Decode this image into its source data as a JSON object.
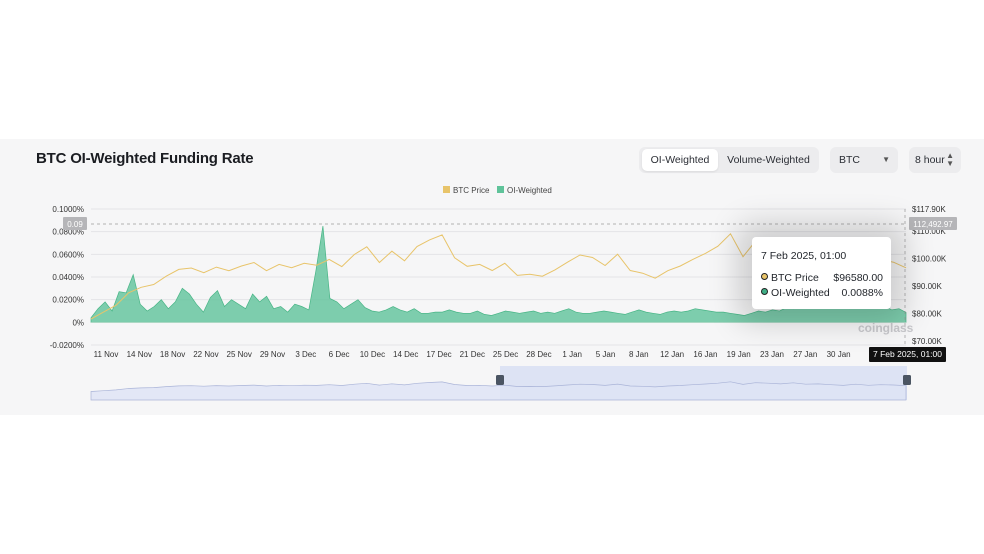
{
  "title": "BTC OI-Weighted Funding Rate",
  "tabs": [
    {
      "label": "OI-Weighted",
      "active": true
    },
    {
      "label": "Volume-Weighted",
      "active": false
    }
  ],
  "coin_select": "BTC",
  "interval_select": "8 hour",
  "watermark": "coinglass",
  "tooltip": {
    "date": "7 Feb 2025, 01:00",
    "rows": [
      {
        "label": "BTC Price",
        "value": "$96580.00",
        "color": "#e8c46a"
      },
      {
        "label": "OI-Weighted",
        "value": "0.0088%",
        "color": "#3fae86"
      }
    ]
  },
  "axis_pointer": {
    "x_label": "7 Feb 2025, 01:00",
    "left_label": "0.09",
    "right_label": "112,492.97"
  },
  "colors": {
    "btc_price": "#e8c46a",
    "oi_weighted": "#5fc39a",
    "zoom_fill": "#c9d3f2"
  },
  "chart_data": {
    "type": "area",
    "legend": [
      "BTC Price",
      "OI-Weighted"
    ],
    "legend_position": "top-center",
    "x_tick_labels": [
      "11 Nov",
      "14 Nov",
      "18 Nov",
      "22 Nov",
      "25 Nov",
      "29 Nov",
      "3 Dec",
      "6 Dec",
      "10 Dec",
      "14 Dec",
      "17 Dec",
      "21 Dec",
      "25 Dec",
      "28 Dec",
      "1 Jan",
      "5 Jan",
      "8 Jan",
      "12 Jan",
      "16 Jan",
      "19 Jan",
      "23 Jan",
      "27 Jan",
      "30 Jan",
      "3"
    ],
    "y_left_ticks": [
      "0.1000%",
      "0.0800%",
      "0.0600%",
      "0.0400%",
      "0.0200%",
      "0%",
      "-0.0200%"
    ],
    "y_right_ticks": [
      "$117.90K",
      "$110.00K",
      "$100.00K",
      "$90.00K",
      "$80.00K",
      "$70.00K"
    ],
    "ylim_left": [
      -0.02,
      0.1
    ],
    "ylim_right": [
      70000,
      117900
    ],
    "grid": true,
    "series": [
      {
        "name": "BTC Price",
        "axis": "right",
        "values": [
          78000,
          80500,
          83000,
          87500,
          89500,
          90500,
          93500,
          96000,
          96500,
          94800,
          96800,
          95500,
          97200,
          98500,
          95500,
          97800,
          96600,
          98200,
          97500,
          99600,
          97000,
          101400,
          104200,
          98500,
          102600,
          99100,
          104300,
          106700,
          108500,
          100200,
          97100,
          97800,
          95600,
          98200,
          93800,
          94200,
          93500,
          95800,
          98600,
          101200,
          100300,
          97400,
          101500,
          95600,
          94600,
          92800,
          95500,
          97200,
          99600,
          101800,
          104400,
          108900,
          100600,
          106200,
          104400,
          102100,
          105800,
          101200,
          102400,
          99800,
          97500,
          101300,
          97800,
          99600,
          98600,
          96580
        ]
      },
      {
        "name": "OI-Weighted",
        "axis": "left",
        "values": [
          0.004,
          0.012,
          0.018,
          0.01,
          0.027,
          0.026,
          0.042,
          0.016,
          0.01,
          0.014,
          0.02,
          0.012,
          0.018,
          0.03,
          0.025,
          0.016,
          0.009,
          0.022,
          0.028,
          0.014,
          0.02,
          0.016,
          0.012,
          0.025,
          0.018,
          0.023,
          0.012,
          0.014,
          0.009,
          0.016,
          0.014,
          0.011,
          0.045,
          0.085,
          0.021,
          0.018,
          0.012,
          0.016,
          0.02,
          0.013,
          0.01,
          0.009,
          0.011,
          0.014,
          0.011,
          0.009,
          0.012,
          0.008,
          0.008,
          0.009,
          0.009,
          0.011,
          0.009,
          0.008,
          0.008,
          0.01,
          0.007,
          0.006,
          0.008,
          0.01,
          0.009,
          0.008,
          0.009,
          0.01,
          0.008,
          0.009,
          0.008,
          0.01,
          0.012,
          0.009,
          0.008,
          0.008,
          0.009,
          0.01,
          0.009,
          0.008,
          0.007,
          0.009,
          0.011,
          0.009,
          0.008,
          0.007,
          0.009,
          0.01,
          0.009,
          0.01,
          0.012,
          0.011,
          0.01,
          0.009,
          0.009,
          0.008,
          0.007,
          0.006,
          0.008,
          0.01,
          0.009,
          0.011,
          0.01,
          0.013,
          0.012,
          0.016,
          0.014,
          0.022,
          0.016,
          0.021,
          0.018,
          0.014,
          0.012,
          0.016,
          0.015,
          0.013,
          0.012,
          0.014,
          0.011,
          0.012,
          0.0088
        ]
      }
    ]
  }
}
